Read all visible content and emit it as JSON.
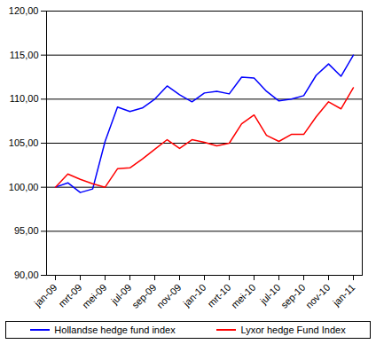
{
  "chart_data": {
    "type": "line",
    "categories": [
      "jan-09",
      null,
      "mrt-09",
      null,
      "mei-09",
      null,
      "jul-09",
      null,
      "sep-09",
      null,
      "nov-09",
      null,
      "jan-10",
      null,
      "mrt-10",
      null,
      "mei-10",
      null,
      "jul-10",
      null,
      "sep-10",
      null,
      "nov-10",
      null,
      "jan-11"
    ],
    "series": [
      {
        "name": "Hollandse hedge fund index",
        "color": "#0000ff",
        "values": [
          100.0,
          100.5,
          99.4,
          99.8,
          105.2,
          109.1,
          108.6,
          109.0,
          110.0,
          111.5,
          110.5,
          109.7,
          110.7,
          110.9,
          110.6,
          112.5,
          112.4,
          110.9,
          109.8,
          110.0,
          110.4,
          112.7,
          114.0,
          112.6,
          115.0
        ]
      },
      {
        "name": "Lyxor hedge Fund Index",
        "color": "#ff0000",
        "values": [
          100.0,
          101.5,
          100.9,
          100.4,
          100.0,
          102.1,
          102.2,
          103.2,
          104.3,
          105.4,
          104.4,
          105.4,
          105.1,
          104.7,
          105.0,
          107.2,
          108.2,
          105.9,
          105.2,
          106.0,
          106.0,
          108.0,
          109.7,
          108.9,
          111.3
        ]
      }
    ],
    "ylim": [
      90,
      120
    ],
    "yticks": [
      {
        "value": 90,
        "label": "90,00"
      },
      {
        "value": 95,
        "label": "95,00"
      },
      {
        "value": 100,
        "label": "100,00"
      },
      {
        "value": 105,
        "label": "105,00"
      },
      {
        "value": 110,
        "label": "110,00"
      },
      {
        "value": 115,
        "label": "115,00"
      },
      {
        "value": 120,
        "label": "120,00"
      }
    ],
    "grid": true,
    "legend": "bottom"
  }
}
